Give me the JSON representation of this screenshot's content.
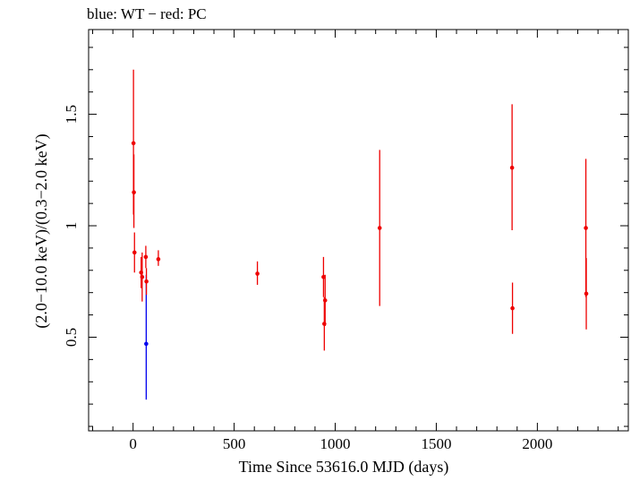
{
  "chart_data": {
    "type": "scatter",
    "title": "blue: WT − red: PC",
    "xlabel": "Time Since 53616.0 MJD (days)",
    "ylabel": "(2.0−10.0 keV)/(0.3−2.0 keV)",
    "xlim": [
      -220,
      2450
    ],
    "ylim": [
      0.08,
      1.88
    ],
    "xticks": [
      0,
      500,
      1000,
      1500,
      2000
    ],
    "xtick_labels": [
      "0",
      "500",
      "1000",
      "1500",
      "2000"
    ],
    "yticks": [
      0.5,
      1,
      1.5
    ],
    "ytick_labels": [
      "0.5",
      "1",
      "1.5"
    ],
    "grid": false,
    "legend": "none",
    "series": [
      {
        "color": "#0000ee",
        "points": [
          {
            "x": 65,
            "y": 0.47,
            "ylo": 0.22,
            "yhi": 0.78
          }
        ]
      },
      {
        "color": "#ee0000",
        "points": [
          {
            "x": 2,
            "y": 1.37,
            "ylo": 1.05,
            "yhi": 1.7
          },
          {
            "x": 4,
            "y": 1.15,
            "ylo": 0.99,
            "yhi": 1.32
          },
          {
            "x": 7,
            "y": 0.88,
            "ylo": 0.79,
            "yhi": 0.97
          },
          {
            "x": 40,
            "y": 0.79,
            "ylo": 0.72,
            "yhi": 0.86
          },
          {
            "x": 45,
            "y": 0.77,
            "ylo": 0.66,
            "yhi": 0.88
          },
          {
            "x": 63,
            "y": 0.86,
            "ylo": 0.81,
            "yhi": 0.91
          },
          {
            "x": 66,
            "y": 0.75,
            "ylo": 0.69,
            "yhi": 0.81
          },
          {
            "x": 125,
            "y": 0.85,
            "ylo": 0.82,
            "yhi": 0.89
          },
          {
            "x": 615,
            "y": 0.785,
            "ylo": 0.735,
            "yhi": 0.84
          },
          {
            "x": 942,
            "y": 0.77,
            "ylo": 0.68,
            "yhi": 0.86
          },
          {
            "x": 946,
            "y": 0.56,
            "ylo": 0.44,
            "yhi": 0.68
          },
          {
            "x": 950,
            "y": 0.665,
            "ylo": 0.55,
            "yhi": 0.78
          },
          {
            "x": 1220,
            "y": 0.99,
            "ylo": 0.64,
            "yhi": 1.34
          },
          {
            "x": 1875,
            "y": 1.26,
            "ylo": 0.98,
            "yhi": 1.545
          },
          {
            "x": 1877,
            "y": 0.63,
            "ylo": 0.515,
            "yhi": 0.745
          },
          {
            "x": 2240,
            "y": 0.99,
            "ylo": 0.68,
            "yhi": 1.3
          },
          {
            "x": 2242,
            "y": 0.695,
            "ylo": 0.535,
            "yhi": 0.855
          }
        ]
      }
    ]
  }
}
